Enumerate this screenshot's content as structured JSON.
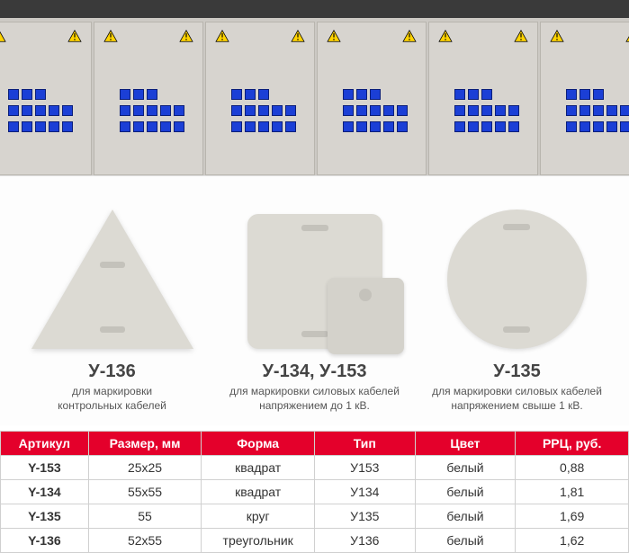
{
  "hero": {
    "bg_top": "#3a3a3a",
    "bg_body": "#ccc9c4",
    "cabinet_color": "#d7d4cf",
    "cabinet_border": "#b8b5ae",
    "meter_color": "#1b3fd6",
    "meter_border": "#0a1e7a",
    "warn_fill": "#ffd300",
    "warn_border": "#000000",
    "cabinet_count": 6
  },
  "tags": {
    "background": "#fdfdfd",
    "shape_fill": "#dcdad3",
    "shape_fill_small": "#d4d2cb",
    "slot_fill": "#c4c2bb",
    "title_color": "#444444",
    "sub_color": "#555555",
    "title_fontsize": 20,
    "sub_fontsize": 12,
    "items": [
      {
        "title": "У-136",
        "sub": "для маркировки\nконтрольных кабелей"
      },
      {
        "title": "У-134, У-153",
        "sub": "для маркировки силовых кабелей\nнапряжением до 1 кВ."
      },
      {
        "title": "У-135",
        "sub": "для маркировки силовых кабелей\nнапряжением свыше 1 кВ."
      }
    ]
  },
  "table": {
    "header_bg": "#e4002b",
    "header_fg": "#ffffff",
    "border_color": "#d0d0d0",
    "cell_fg": "#333333",
    "fontsize": 14,
    "col_widths_pct": [
      14,
      18,
      18,
      16,
      16,
      18
    ],
    "columns": [
      "Артикул",
      "Размер, мм",
      "Форма",
      "Тип",
      "Цвет",
      "РРЦ, руб."
    ],
    "rows": [
      [
        "Y-153",
        "25х25",
        "квадрат",
        "У153",
        "белый",
        "0,88"
      ],
      [
        "Y-134",
        "55х55",
        "квадрат",
        "У134",
        "белый",
        "1,81"
      ],
      [
        "Y-135",
        "55",
        "круг",
        "У135",
        "белый",
        "1,69"
      ],
      [
        "Y-136",
        "52х55",
        "треугольник",
        "У136",
        "белый",
        "1,62"
      ]
    ]
  }
}
